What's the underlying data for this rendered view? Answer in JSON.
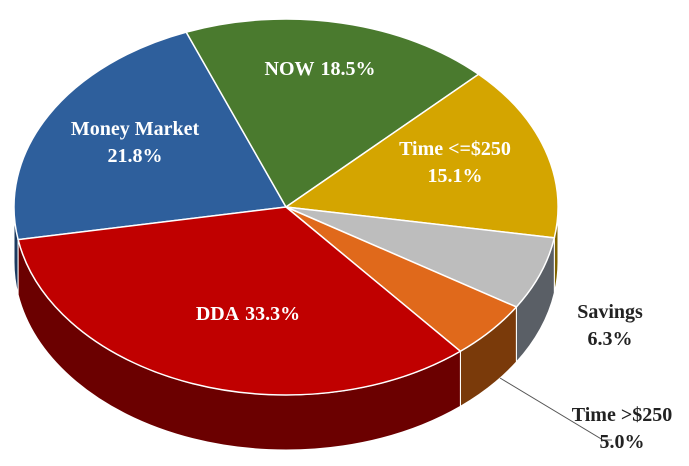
{
  "chart_data": {
    "type": "pie",
    "categories": [
      "Money Market",
      "NOW",
      "Time <=$250",
      "Savings",
      "Time >$250",
      "DDA"
    ],
    "values": [
      21.8,
      18.5,
      15.1,
      6.3,
      5.0,
      33.3
    ],
    "value_labels": [
      "21.8%",
      "18.5%",
      "15.1%",
      "6.3%",
      "5.0%",
      "33.3%"
    ],
    "colors": [
      "#2e5f9c",
      "#4a7a2e",
      "#d4a500",
      "#bdbdbd",
      "#e0691b",
      "#c00000"
    ],
    "side_colors": [
      "#1b3a60",
      "#2c4a1b",
      "#7f6300",
      "#5a5f66",
      "#7a3a0a",
      "#6b0000"
    ]
  }
}
